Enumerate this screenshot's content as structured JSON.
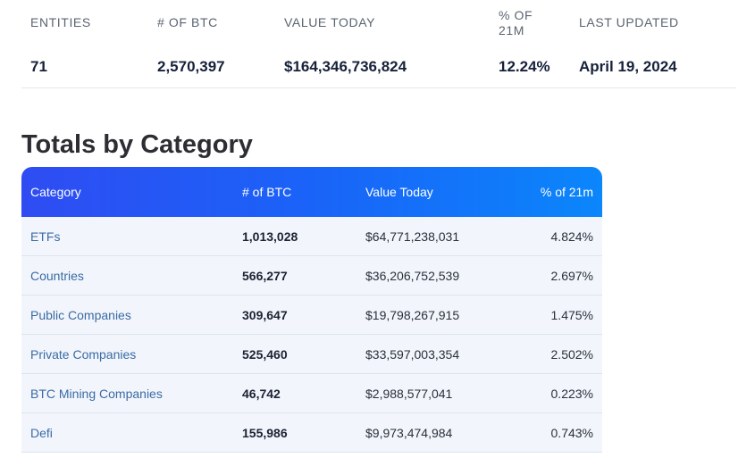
{
  "summary": {
    "columns": [
      {
        "label": "ENTITIES",
        "value": "71"
      },
      {
        "label": "# OF BTC",
        "value": "2,570,397"
      },
      {
        "label": "VALUE TODAY",
        "value": "$164,346,736,824"
      },
      {
        "label": "% OF 21M",
        "value": "12.24%"
      },
      {
        "label": "LAST UPDATED",
        "value": "April 19, 2024"
      }
    ]
  },
  "section": {
    "title": "Totals by Category"
  },
  "table": {
    "headers": {
      "category": "Category",
      "btc": "# of BTC",
      "value": "Value Today",
      "pct": "% of 21m"
    },
    "rows": [
      {
        "category": "ETFs",
        "btc": "1,013,028",
        "value": "$64,771,238,031",
        "pct": "4.824%"
      },
      {
        "category": "Countries",
        "btc": "566,277",
        "value": "$36,206,752,539",
        "pct": "2.697%"
      },
      {
        "category": "Public Companies",
        "btc": "309,647",
        "value": "$19,798,267,915",
        "pct": "1.475%"
      },
      {
        "category": "Private Companies",
        "btc": "525,460",
        "value": "$33,597,003,354",
        "pct": "2.502%"
      },
      {
        "category": "BTC Mining Companies",
        "btc": "46,742",
        "value": "$2,988,577,041",
        "pct": "0.223%"
      },
      {
        "category": "Defi",
        "btc": "155,986",
        "value": "$9,973,474,984",
        "pct": "0.743%"
      }
    ]
  },
  "colors": {
    "header_gradient_start": "#2f4cf2",
    "header_gradient_end": "#0b86fb",
    "link": "#3a6aa5"
  }
}
